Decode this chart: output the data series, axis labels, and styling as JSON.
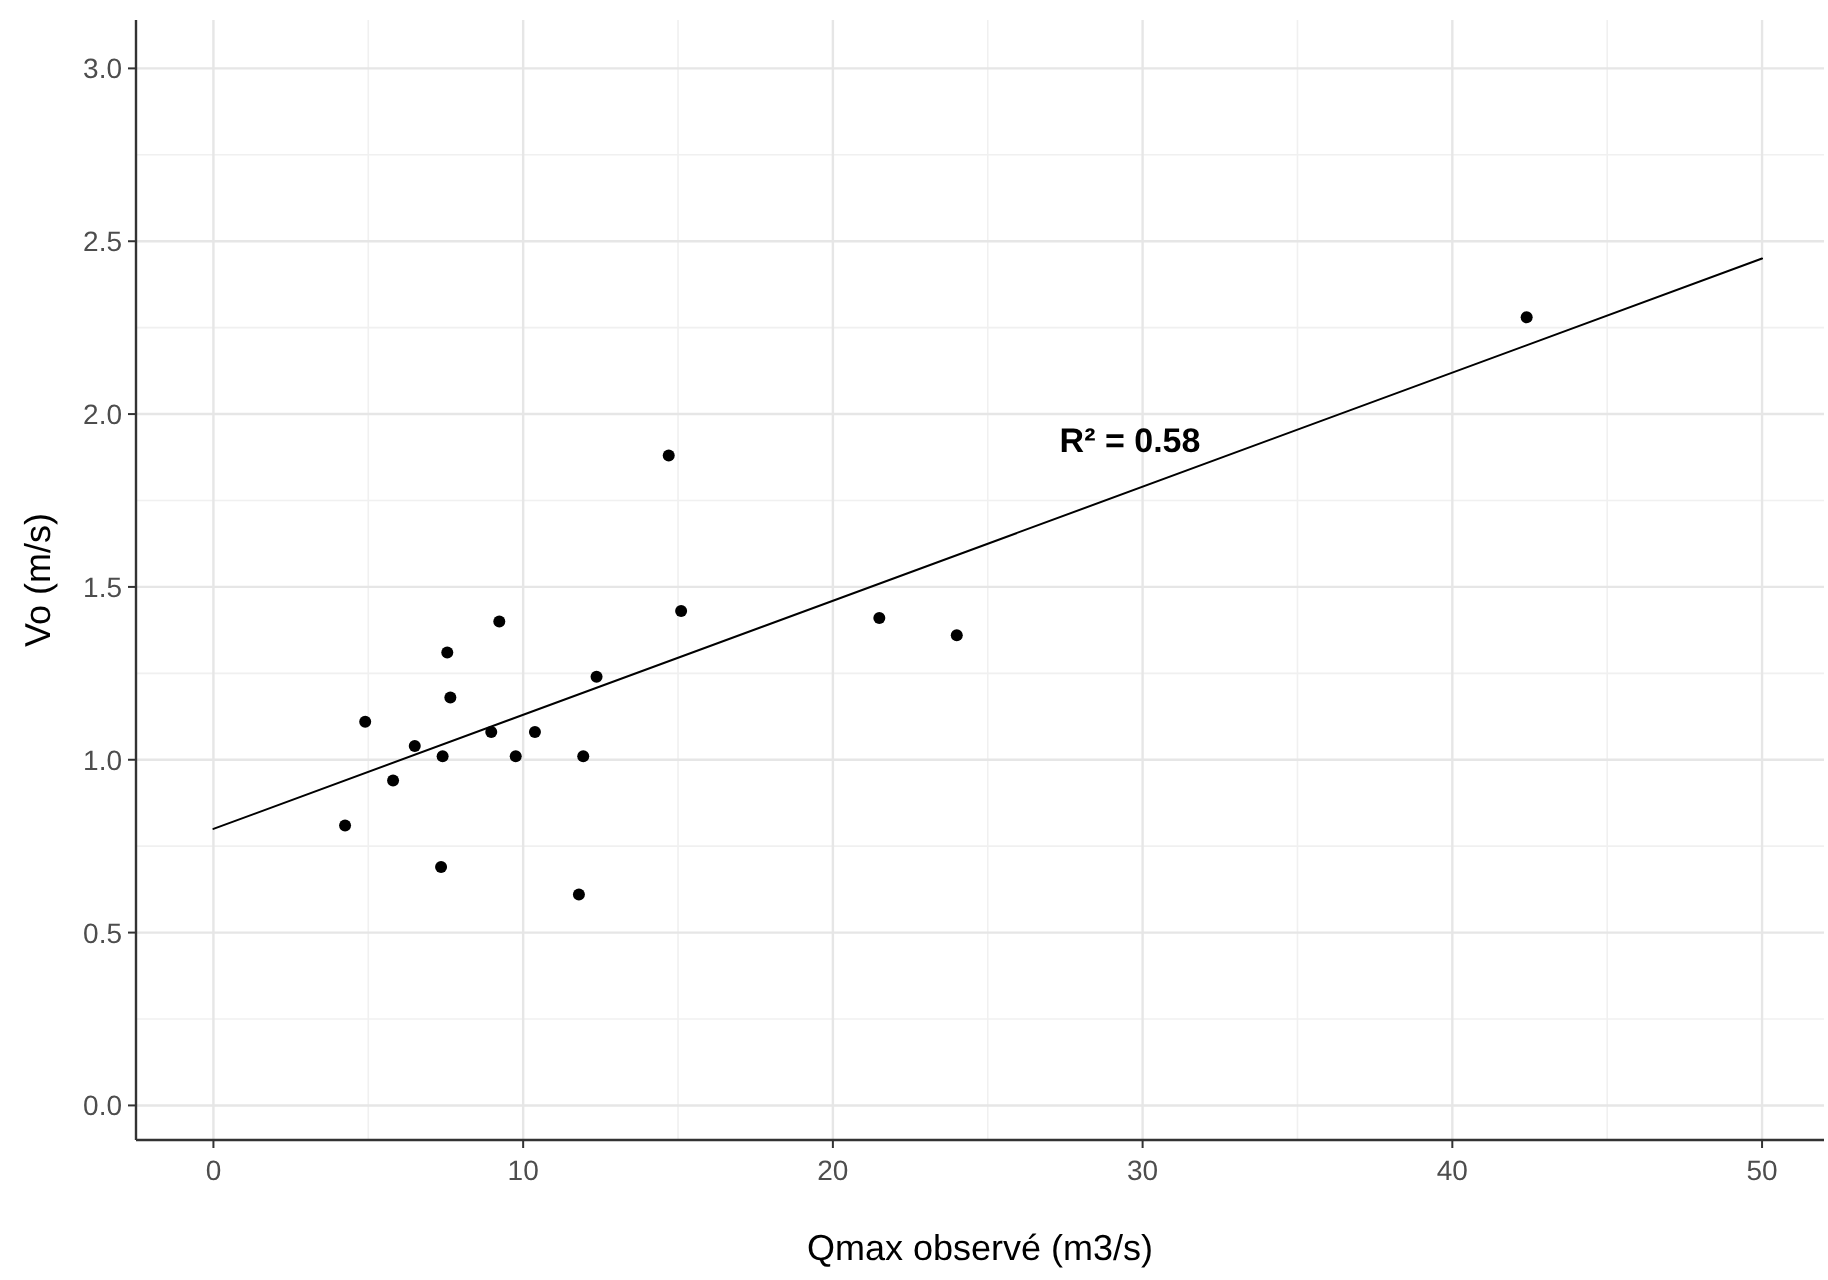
{
  "chart_data": {
    "type": "scatter",
    "xlabel": "Qmax observé (m3/s)",
    "ylabel": "Vo (m/s)",
    "xlim": [
      -2.5,
      52
    ],
    "ylim": [
      -0.1,
      3.14
    ],
    "xticks": [
      0,
      10,
      20,
      30,
      40,
      50
    ],
    "yticks": [
      {
        "value": 0,
        "label": "0.0"
      },
      0.5,
      {
        "value": 1,
        "label": "1.0"
      },
      1.5,
      {
        "value": 2,
        "label": "2.0"
      },
      2.5,
      {
        "value": 3,
        "label": "3.0"
      }
    ],
    "grid": true,
    "marker": "circle",
    "series": [
      {
        "color": "#000000",
        "x": [
          4.25,
          4.9,
          5.8,
          6.5,
          7.35,
          7.4,
          7.55,
          7.65,
          8.97,
          9.23,
          9.76,
          10.38,
          11.8,
          11.94,
          12.37,
          14.7,
          15.1,
          21.5,
          24.0,
          42.4
        ],
        "values": [
          0.81,
          1.11,
          0.94,
          1.04,
          0.69,
          1.01,
          1.31,
          1.18,
          1.08,
          1.4,
          1.01,
          1.08,
          0.61,
          1.01,
          1.24,
          1.88,
          1.43,
          1.41,
          1.36,
          2.28
        ]
      },
      {
        "type": "line",
        "color": "#000000",
        "marker": "none",
        "x": [
          0,
          50
        ],
        "values": [
          0.8,
          2.45
        ]
      }
    ],
    "annotations": [
      "R² = 0.58"
    ]
  }
}
